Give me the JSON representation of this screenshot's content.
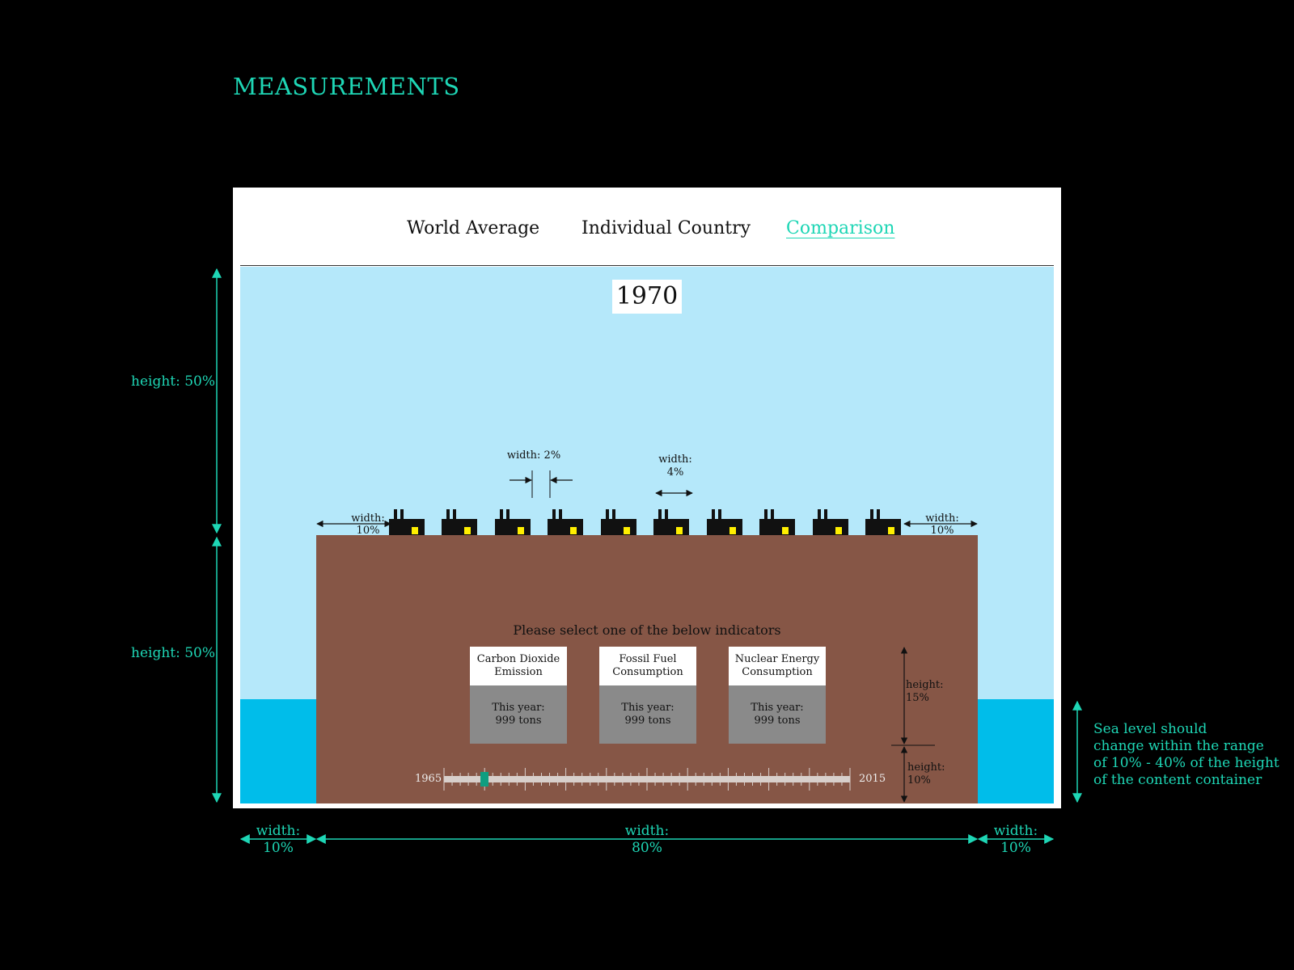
{
  "page_title": "MEASUREMENTS",
  "nav": {
    "tabs": [
      {
        "label": "World Average",
        "active": false
      },
      {
        "label": "Individual Country",
        "active": false
      },
      {
        "label": "Comparison",
        "active": true
      }
    ]
  },
  "scene": {
    "year": "1970",
    "factory_count": 10,
    "prompt": "Please select one of the below indicators",
    "indicators": [
      {
        "title": "Carbon Dioxide Emission",
        "value_label": "This year:",
        "value": "999 tons"
      },
      {
        "title": "Fossil Fuel Consumption",
        "value_label": "This year:",
        "value": "999 tons"
      },
      {
        "title": "Nuclear Energy Consumption",
        "value_label": "This year:",
        "value": "999 tons"
      }
    ],
    "slider": {
      "min_label": "1965",
      "max_label": "2015",
      "min": 1965,
      "max": 2015,
      "value": 1970
    }
  },
  "annotations": {
    "factory_gap": "width: 2%",
    "factory_width": {
      "line1": "width:",
      "line2": "4%"
    },
    "left_margin": {
      "line1": "width:",
      "line2": "10%"
    },
    "right_margin": {
      "line1": "width:",
      "line2": "10%"
    },
    "sky_height": "height: 50%",
    "land_height": "height: 50%",
    "cards_height": {
      "line1": "height:",
      "line2": "15%"
    },
    "slider_height": {
      "line1": "height:",
      "line2": "10%"
    },
    "bottom_left": {
      "line1": "width:",
      "line2": "10%"
    },
    "bottom_center": {
      "line1": "width:",
      "line2": "80%"
    },
    "bottom_right": {
      "line1": "width:",
      "line2": "10%"
    },
    "sea_note": [
      "Sea level should",
      "change within the range",
      "of 10% - 40% of the height",
      "of the content container"
    ]
  },
  "colors": {
    "accent": "#1ed6b5",
    "sky": "#b5e8fa",
    "sea": "#00bdea",
    "land": "#865646",
    "factory": "#111111",
    "factory_light": "#ffef00",
    "card_value_bg": "#8a8a8a",
    "slider_thumb": "#0f9e80"
  }
}
